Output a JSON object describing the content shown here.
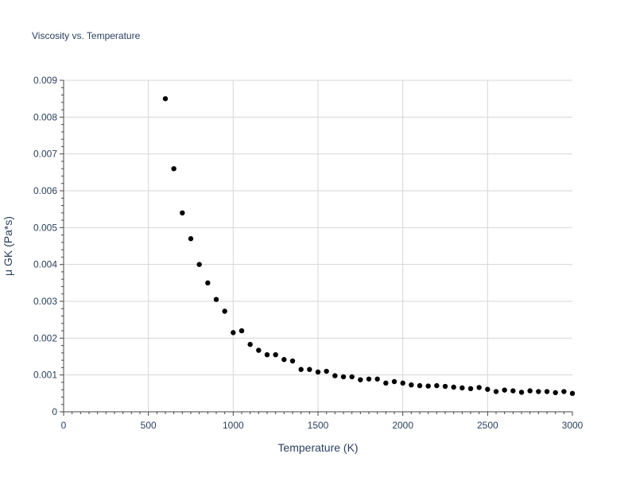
{
  "chart_data": {
    "type": "scatter",
    "title": "Viscosity vs. Temperature",
    "xlabel": "Temperature (K)",
    "ylabel": "μ GK (Pa*s)",
    "xlim": [
      0,
      3000
    ],
    "ylim": [
      0,
      0.009
    ],
    "grid": true,
    "legend": "none",
    "marker_color": "#000000",
    "x_ticks": [
      "0",
      "500",
      "1000",
      "1500",
      "2000",
      "2500",
      "3000"
    ],
    "y_ticks": [
      "0",
      "0.001",
      "0.002",
      "0.003",
      "0.004",
      "0.005",
      "0.006",
      "0.007",
      "0.008",
      "0.009"
    ],
    "x": [
      600,
      650,
      700,
      750,
      800,
      850,
      900,
      950,
      1000,
      1050,
      1100,
      1150,
      1200,
      1250,
      1300,
      1350,
      1400,
      1450,
      1500,
      1550,
      1600,
      1650,
      1700,
      1750,
      1800,
      1850,
      1900,
      1950,
      2000,
      2050,
      2100,
      2150,
      2200,
      2250,
      2300,
      2350,
      2400,
      2450,
      2500,
      2550,
      2600,
      2650,
      2700,
      2750,
      2800,
      2850,
      2900,
      2950,
      3000
    ],
    "y": [
      0.0085,
      0.0066,
      0.0054,
      0.0047,
      0.004,
      0.0035,
      0.00305,
      0.00273,
      0.00215,
      0.0022,
      0.00183,
      0.00167,
      0.00155,
      0.00155,
      0.00142,
      0.00138,
      0.00115,
      0.00115,
      0.00108,
      0.0011,
      0.00098,
      0.00095,
      0.00095,
      0.00087,
      0.00089,
      0.00089,
      0.00078,
      0.00082,
      0.00078,
      0.00073,
      0.00071,
      0.0007,
      0.00071,
      0.00069,
      0.00067,
      0.00065,
      0.00063,
      0.00066,
      0.00061,
      0.00055,
      0.00059,
      0.00057,
      0.00053,
      0.00057,
      0.00055,
      0.00055,
      0.00052,
      0.00055,
      0.0005
    ]
  }
}
